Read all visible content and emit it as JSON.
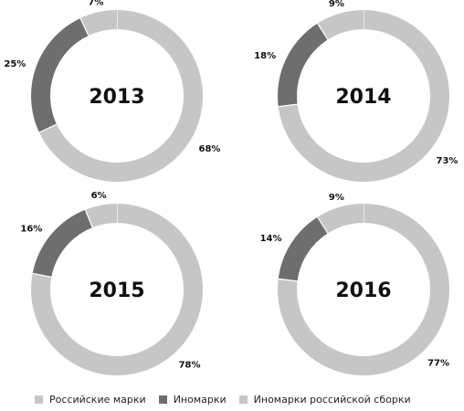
{
  "chart_data": [
    {
      "type": "pie",
      "center_label": "2013",
      "slices": [
        {
          "series": "Российские марки",
          "value": 68,
          "label": "68%"
        },
        {
          "series": "Иномарки",
          "value": 25,
          "label": "25%"
        },
        {
          "series": "Иномарки российской сборки",
          "value": 7,
          "label": "7%"
        }
      ]
    },
    {
      "type": "pie",
      "center_label": "2014",
      "slices": [
        {
          "series": "Российские марки",
          "value": 73,
          "label": "73%"
        },
        {
          "series": "Иномарки",
          "value": 18,
          "label": "18%"
        },
        {
          "series": "Иномарки российской сборки",
          "value": 9,
          "label": "9%"
        }
      ]
    },
    {
      "type": "pie",
      "center_label": "2015",
      "slices": [
        {
          "series": "Российские марки",
          "value": 78,
          "label": "78%"
        },
        {
          "series": "Иномарки",
          "value": 16,
          "label": "16%"
        },
        {
          "series": "Иномарки российской сборки",
          "value": 6,
          "label": "6%"
        }
      ]
    },
    {
      "type": "pie",
      "center_label": "2016",
      "slices": [
        {
          "series": "Российские марки",
          "value": 77,
          "label": "77%"
        },
        {
          "series": "Иномарки",
          "value": 14,
          "label": "14%"
        },
        {
          "series": "Иномарки российской сборки",
          "value": 9,
          "label": "9%"
        }
      ]
    }
  ],
  "colors": {
    "Российские марки": "#c6c6c6",
    "Иномарки": "#6e6e6e",
    "Иномарки российской сборки": "#c6c6c6"
  },
  "legend": {
    "position": "bottom",
    "items": [
      {
        "label": "Российские марки",
        "color": "#c6c6c6"
      },
      {
        "label": "Иномарки",
        "color": "#6e6e6e"
      },
      {
        "label": "Иномарки российской сборки",
        "color": "#c6c6c6"
      }
    ]
  }
}
